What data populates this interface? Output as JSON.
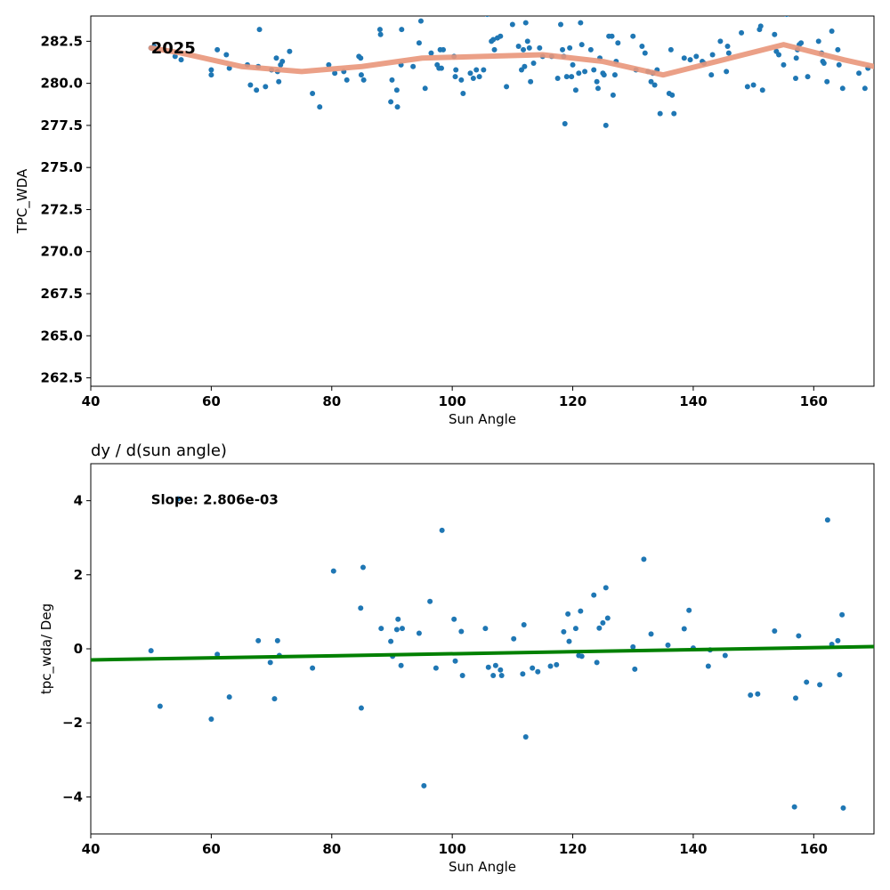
{
  "colors": {
    "points": "#1f77b4",
    "trend": "#e9967a",
    "fit": "#008000"
  },
  "chart_data": [
    {
      "type": "scatter",
      "title": "",
      "xlabel": "Sun Angle",
      "ylabel": "TPC_WDA",
      "xlim": [
        40,
        170
      ],
      "ylim": [
        262,
        284
      ],
      "xticks": [
        40,
        60,
        80,
        100,
        120,
        140,
        160
      ],
      "xtick_labels": [
        "40",
        "60",
        "80",
        "100",
        "120",
        "140",
        "160"
      ],
      "yticks": [
        262.5,
        265.0,
        267.5,
        270.0,
        272.5,
        275.0,
        277.5,
        280.0,
        282.5
      ],
      "ytick_labels": [
        "262.5",
        "265.0",
        "267.5",
        "270.0",
        "272.5",
        "275.0",
        "277.5",
        "280.0",
        "282.5"
      ],
      "annotation": {
        "text": "2025",
        "x": 50,
        "y": 282.1
      },
      "grid": false,
      "points": [
        [
          50,
          282.1
        ],
        [
          50.5,
          282.2
        ],
        [
          54,
          281.6
        ],
        [
          55,
          281.4
        ],
        [
          60,
          280.5
        ],
        [
          60,
          280.8
        ],
        [
          61,
          282
        ],
        [
          62.5,
          281.7
        ],
        [
          63,
          280.9
        ],
        [
          66,
          281.1
        ],
        [
          66.5,
          279.9
        ],
        [
          67.5,
          279.6
        ],
        [
          67.8,
          281
        ],
        [
          68,
          283.2
        ],
        [
          69,
          279.8
        ],
        [
          70,
          280.8
        ],
        [
          70.8,
          281.5
        ],
        [
          71,
          280.7
        ],
        [
          71.2,
          280.1
        ],
        [
          71.5,
          281.1
        ],
        [
          71.8,
          281.3
        ],
        [
          73,
          281.9
        ],
        [
          76.8,
          279.4
        ],
        [
          78,
          278.6
        ],
        [
          79.5,
          281.1
        ],
        [
          80.5,
          280.6
        ],
        [
          82,
          280.7
        ],
        [
          82.5,
          280.2
        ],
        [
          84.5,
          281.6
        ],
        [
          84.8,
          281.5
        ],
        [
          84.9,
          280.5
        ],
        [
          85.3,
          280.2
        ],
        [
          88,
          283.2
        ],
        [
          88.1,
          282.9
        ],
        [
          89.8,
          278.9
        ],
        [
          90,
          280.2
        ],
        [
          90.8,
          279.6
        ],
        [
          90.9,
          278.6
        ],
        [
          91.5,
          281.1
        ],
        [
          91.6,
          283.2
        ],
        [
          93.5,
          281
        ],
        [
          94.5,
          282.4
        ],
        [
          94.8,
          283.7
        ],
        [
          95.5,
          279.7
        ],
        [
          96.5,
          281.8
        ],
        [
          97.5,
          281.1
        ],
        [
          97.8,
          280.9
        ],
        [
          98,
          282
        ],
        [
          98.2,
          280.9
        ],
        [
          98.5,
          282
        ],
        [
          100.3,
          281.6
        ],
        [
          100.5,
          280.4
        ],
        [
          100.6,
          280.8
        ],
        [
          101.5,
          280.2
        ],
        [
          101.8,
          279.4
        ],
        [
          103,
          280.6
        ],
        [
          103.5,
          280.3
        ],
        [
          104,
          280.8
        ],
        [
          104.5,
          280.4
        ],
        [
          105.2,
          280.8
        ],
        [
          105.8,
          284.1
        ],
        [
          106.5,
          282.5
        ],
        [
          106.8,
          282.6
        ],
        [
          107,
          282
        ],
        [
          107.5,
          282.7
        ],
        [
          108,
          282.8
        ],
        [
          109,
          279.8
        ],
        [
          110,
          283.5
        ],
        [
          111,
          282.2
        ],
        [
          111.5,
          280.8
        ],
        [
          111.8,
          282
        ],
        [
          112,
          281
        ],
        [
          112.2,
          283.6
        ],
        [
          112.5,
          282.5
        ],
        [
          112.8,
          282.1
        ],
        [
          113,
          280.1
        ],
        [
          113.5,
          281.2
        ],
        [
          114.5,
          282.1
        ],
        [
          115,
          281.6
        ],
        [
          116.5,
          281.6
        ],
        [
          117.5,
          280.3
        ],
        [
          118,
          283.5
        ],
        [
          118.3,
          282
        ],
        [
          118.5,
          281.6
        ],
        [
          118.7,
          277.6
        ],
        [
          119,
          280.4
        ],
        [
          119.5,
          282.1
        ],
        [
          119.8,
          280.4
        ],
        [
          120,
          281.1
        ],
        [
          120.5,
          279.6
        ],
        [
          121,
          280.6
        ],
        [
          121.3,
          283.6
        ],
        [
          121.5,
          282.3
        ],
        [
          122,
          280.7
        ],
        [
          123,
          282
        ],
        [
          123.5,
          280.8
        ],
        [
          124,
          280.1
        ],
        [
          124.2,
          279.7
        ],
        [
          124.5,
          281.5
        ],
        [
          125,
          280.6
        ],
        [
          125.2,
          280.5
        ],
        [
          125.5,
          277.5
        ],
        [
          126,
          282.8
        ],
        [
          126.5,
          282.8
        ],
        [
          126.7,
          279.3
        ],
        [
          127,
          280.5
        ],
        [
          127.2,
          281.3
        ],
        [
          127.5,
          282.4
        ],
        [
          130,
          282.8
        ],
        [
          130.5,
          280.8
        ],
        [
          131.5,
          282.2
        ],
        [
          132,
          281.8
        ],
        [
          132.5,
          280.7
        ],
        [
          133,
          280.1
        ],
        [
          133.3,
          280.6
        ],
        [
          133.6,
          279.9
        ],
        [
          134,
          280.8
        ],
        [
          134.5,
          278.2
        ],
        [
          136,
          279.4
        ],
        [
          136.3,
          282
        ],
        [
          136.5,
          279.3
        ],
        [
          136.8,
          278.2
        ],
        [
          138.5,
          281.5
        ],
        [
          139.5,
          281.4
        ],
        [
          140.5,
          281.6
        ],
        [
          141.5,
          281.3
        ],
        [
          141.8,
          281.2
        ],
        [
          143,
          280.5
        ],
        [
          143.2,
          281.7
        ],
        [
          144.5,
          282.5
        ],
        [
          145.5,
          280.7
        ],
        [
          145.7,
          282.2
        ],
        [
          145.9,
          281.8
        ],
        [
          148,
          283
        ],
        [
          149,
          279.8
        ],
        [
          150,
          279.9
        ],
        [
          151,
          283.2
        ],
        [
          151.2,
          283.4
        ],
        [
          151.5,
          279.6
        ],
        [
          153.5,
          282.9
        ],
        [
          153.8,
          281.9
        ],
        [
          154.2,
          281.7
        ],
        [
          155,
          281.1
        ],
        [
          155.5,
          284.1
        ],
        [
          157,
          280.3
        ],
        [
          157.1,
          281.5
        ],
        [
          157.3,
          282
        ],
        [
          157.6,
          282.3
        ],
        [
          157.9,
          282.4
        ],
        [
          159,
          280.4
        ],
        [
          160.8,
          282.5
        ],
        [
          161.3,
          281.8
        ],
        [
          161.5,
          281.3
        ],
        [
          161.7,
          281.2
        ],
        [
          162.2,
          280.1
        ],
        [
          163,
          283.1
        ],
        [
          164,
          282
        ],
        [
          164.2,
          281.1
        ],
        [
          164.8,
          279.7
        ],
        [
          167.5,
          280.6
        ],
        [
          168.5,
          279.7
        ],
        [
          169,
          280.9
        ]
      ],
      "trend": [
        [
          50,
          282.1
        ],
        [
          55,
          281.8
        ],
        [
          65,
          281
        ],
        [
          75,
          280.7
        ],
        [
          85,
          281
        ],
        [
          95,
          281.5
        ],
        [
          105,
          281.6
        ],
        [
          115,
          281.7
        ],
        [
          125,
          281.3
        ],
        [
          135,
          280.5
        ],
        [
          145,
          281.4
        ],
        [
          155,
          282.3
        ],
        [
          165,
          281.4
        ],
        [
          170,
          281
        ]
      ]
    },
    {
      "type": "scatter",
      "title": "dy / d(sun angle)",
      "xlabel": "Sun Angle",
      "ylabel": "tpc_wda/ Deg",
      "xlim": [
        40,
        170
      ],
      "ylim": [
        -5,
        5
      ],
      "xticks": [
        40,
        60,
        80,
        100,
        120,
        140,
        160
      ],
      "xtick_labels": [
        "40",
        "60",
        "80",
        "100",
        "120",
        "140",
        "160"
      ],
      "yticks": [
        -4,
        -2,
        0,
        2,
        4
      ],
      "ytick_labels": [
        "−4",
        "−2",
        "0",
        "2",
        "4"
      ],
      "annotation": {
        "text": "Slope: 2.806e-03",
        "x": 50,
        "y": 4.05
      },
      "grid": false,
      "points": [
        [
          50,
          -0.05
        ],
        [
          51.5,
          -1.55
        ],
        [
          54.5,
          4.05
        ],
        [
          60,
          -1.9
        ],
        [
          61,
          -0.15
        ],
        [
          63,
          -1.3
        ],
        [
          67.8,
          0.22
        ],
        [
          69.8,
          -0.37
        ],
        [
          70.5,
          -1.35
        ],
        [
          71,
          0.22
        ],
        [
          71.3,
          -0.18
        ],
        [
          76.8,
          -0.52
        ],
        [
          80.3,
          2.1
        ],
        [
          84.8,
          1.1
        ],
        [
          84.9,
          -1.6
        ],
        [
          85.2,
          2.2
        ],
        [
          88.2,
          0.55
        ],
        [
          89.8,
          0.2
        ],
        [
          90.1,
          -0.2
        ],
        [
          90.8,
          0.52
        ],
        [
          91,
          0.8
        ],
        [
          91.5,
          -0.45
        ],
        [
          91.7,
          0.55
        ],
        [
          94.5,
          0.42
        ],
        [
          95.3,
          -3.7
        ],
        [
          96.3,
          1.28
        ],
        [
          97.3,
          -0.52
        ],
        [
          98.3,
          3.2
        ],
        [
          100.3,
          0.8
        ],
        [
          100.5,
          -0.33
        ],
        [
          101.5,
          0.47
        ],
        [
          101.7,
          -0.72
        ],
        [
          105.5,
          0.55
        ],
        [
          106,
          -0.5
        ],
        [
          106.8,
          -0.72
        ],
        [
          107.2,
          -0.45
        ],
        [
          108,
          -0.57
        ],
        [
          108.2,
          -0.72
        ],
        [
          110.2,
          0.27
        ],
        [
          111.7,
          -0.68
        ],
        [
          111.9,
          0.65
        ],
        [
          112.2,
          -2.38
        ],
        [
          113.3,
          -0.52
        ],
        [
          114.2,
          -0.62
        ],
        [
          116.3,
          -0.47
        ],
        [
          117.3,
          -0.43
        ],
        [
          118.5,
          0.46
        ],
        [
          119.2,
          0.94
        ],
        [
          119.4,
          0.2
        ],
        [
          120.5,
          0.55
        ],
        [
          121,
          -0.18
        ],
        [
          121.3,
          1.02
        ],
        [
          121.5,
          -0.2
        ],
        [
          123.5,
          1.45
        ],
        [
          124,
          -0.37
        ],
        [
          124.4,
          0.56
        ],
        [
          125,
          0.7
        ],
        [
          125.5,
          1.65
        ],
        [
          125.8,
          0.83
        ],
        [
          130,
          0.05
        ],
        [
          130.3,
          -0.55
        ],
        [
          131.8,
          2.42
        ],
        [
          133,
          0.4
        ],
        [
          135.8,
          0.1
        ],
        [
          138.5,
          0.54
        ],
        [
          139.3,
          1.04
        ],
        [
          140,
          0.02
        ],
        [
          142.5,
          -0.47
        ],
        [
          142.8,
          -0.03
        ],
        [
          145.3,
          -0.18
        ],
        [
          149.5,
          -1.25
        ],
        [
          150.7,
          -1.22
        ],
        [
          153.5,
          0.48
        ],
        [
          156.8,
          -4.27
        ],
        [
          157,
          -1.33
        ],
        [
          157.5,
          0.35
        ],
        [
          158.8,
          -0.9
        ],
        [
          161,
          -0.97
        ],
        [
          162.3,
          3.48
        ],
        [
          163,
          0.12
        ],
        [
          164,
          0.22
        ],
        [
          164.3,
          -0.7
        ],
        [
          164.7,
          0.92
        ],
        [
          164.9,
          -4.3
        ]
      ],
      "fit_line": [
        [
          40,
          -0.3
        ],
        [
          170,
          0.06
        ]
      ]
    }
  ]
}
